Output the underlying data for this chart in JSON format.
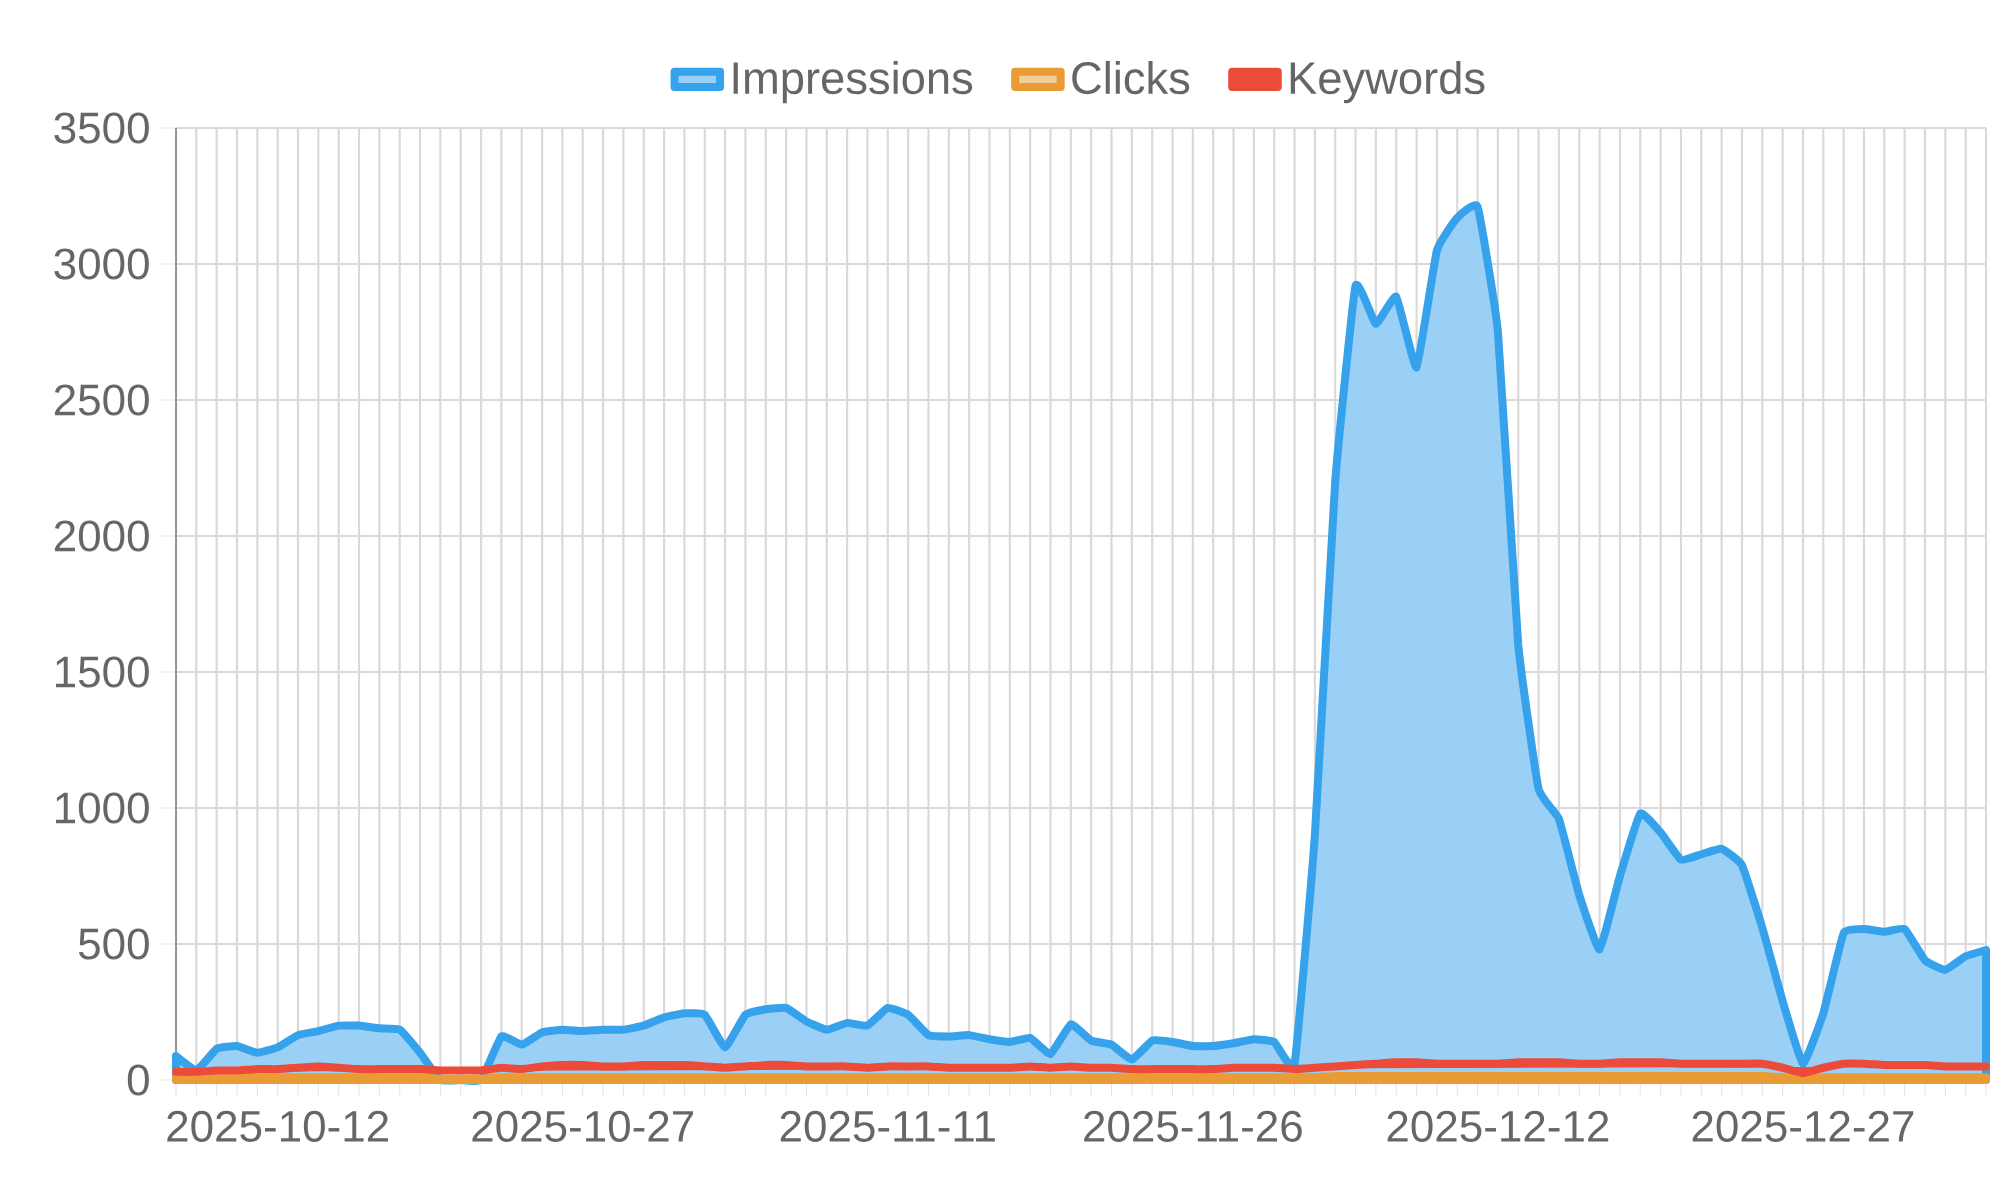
{
  "chart_data": {
    "type": "area",
    "categories": [
      null,
      null,
      null,
      null,
      null,
      "2025-10-12",
      null,
      null,
      null,
      null,
      null,
      null,
      null,
      null,
      null,
      null,
      null,
      null,
      null,
      null,
      "2025-10-27",
      null,
      null,
      null,
      null,
      null,
      null,
      null,
      null,
      null,
      null,
      null,
      null,
      null,
      null,
      "2025-11-11",
      null,
      null,
      null,
      null,
      null,
      null,
      null,
      null,
      null,
      null,
      null,
      null,
      null,
      null,
      "2025-11-26",
      null,
      null,
      null,
      null,
      null,
      null,
      null,
      null,
      null,
      null,
      null,
      null,
      null,
      null,
      "2025-12-12",
      null,
      null,
      null,
      null,
      null,
      null,
      null,
      null,
      null,
      null,
      null,
      null,
      null,
      null,
      "2025-12-27",
      null,
      null,
      null,
      null,
      null,
      null,
      null,
      null,
      null
    ],
    "series": [
      {
        "name": "Impressions",
        "color": "#36a2eb",
        "values": [
          88,
          35,
          115,
          125,
          100,
          120,
          165,
          180,
          200,
          200,
          190,
          185,
          100,
          0,
          0,
          0,
          160,
          130,
          175,
          185,
          180,
          185,
          185,
          200,
          230,
          245,
          240,
          120,
          240,
          260,
          265,
          215,
          185,
          210,
          200,
          265,
          240,
          165,
          160,
          165,
          150,
          140,
          155,
          95,
          205,
          145,
          130,
          75,
          145,
          140,
          125,
          125,
          135,
          150,
          140,
          60,
          900,
          2200,
          2920,
          2780,
          2880,
          2620,
          3050,
          3170,
          3210,
          2750,
          1600,
          1070,
          960,
          680,
          480,
          750,
          980,
          910,
          810,
          830,
          850,
          790,
          560,
          290,
          60,
          245,
          540,
          555,
          545,
          555,
          440,
          405,
          455,
          478
        ]
      },
      {
        "name": "Clicks",
        "color": "#e99c35",
        "values": [
          10,
          10,
          10,
          10,
          10,
          10,
          10,
          10,
          10,
          10,
          10,
          10,
          10,
          5,
          5,
          5,
          10,
          10,
          10,
          10,
          10,
          10,
          10,
          10,
          10,
          10,
          10,
          10,
          10,
          10,
          10,
          10,
          10,
          10,
          10,
          10,
          10,
          10,
          10,
          10,
          10,
          10,
          10,
          10,
          10,
          10,
          10,
          10,
          10,
          10,
          10,
          10,
          10,
          10,
          10,
          10,
          10,
          15,
          15,
          15,
          15,
          15,
          15,
          15,
          15,
          15,
          15,
          15,
          15,
          15,
          15,
          15,
          15,
          15,
          15,
          15,
          15,
          15,
          15,
          10,
          5,
          10,
          10,
          10,
          10,
          10,
          10,
          10,
          10,
          10
        ]
      },
      {
        "name": "Keywords",
        "color": "#ec4b3a",
        "type": "line",
        "values": [
          30,
          30,
          35,
          35,
          40,
          40,
          45,
          50,
          45,
          40,
          40,
          40,
          40,
          35,
          35,
          35,
          45,
          40,
          50,
          55,
          55,
          50,
          50,
          55,
          55,
          55,
          50,
          45,
          50,
          55,
          55,
          50,
          50,
          50,
          45,
          50,
          50,
          50,
          45,
          45,
          45,
          45,
          50,
          45,
          50,
          45,
          45,
          40,
          40,
          40,
          40,
          40,
          45,
          45,
          45,
          40,
          45,
          50,
          55,
          60,
          65,
          65,
          60,
          60,
          60,
          60,
          65,
          65,
          65,
          60,
          60,
          65,
          65,
          65,
          60,
          60,
          60,
          60,
          60,
          45,
          25,
          45,
          60,
          60,
          55,
          55,
          55,
          50,
          50,
          50
        ]
      }
    ],
    "ylim": [
      0,
      3500
    ],
    "yticks": [
      0,
      500,
      1000,
      1500,
      2000,
      2500,
      3000,
      3500
    ],
    "grid": true,
    "legend": "top"
  }
}
